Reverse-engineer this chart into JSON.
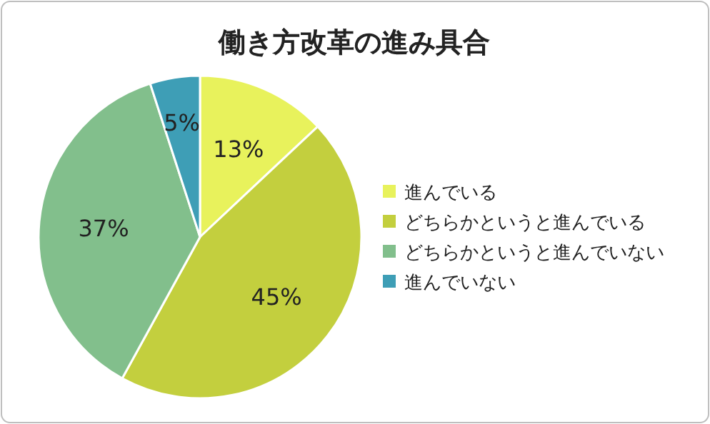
{
  "chart_data": {
    "type": "pie",
    "title": "働き方改革の進み具合",
    "categories": [
      "進んでいる",
      "どちらかというと進んでいる",
      "どちらかというと進んでいない",
      "進んでいない"
    ],
    "values": [
      13,
      45,
      37,
      5
    ],
    "colors": [
      "#e8f25c",
      "#c3cf3e",
      "#82bf8c",
      "#3e9eb6"
    ],
    "value_labels": [
      "13%",
      "45%",
      "37%",
      "5%"
    ],
    "legend": "right"
  }
}
